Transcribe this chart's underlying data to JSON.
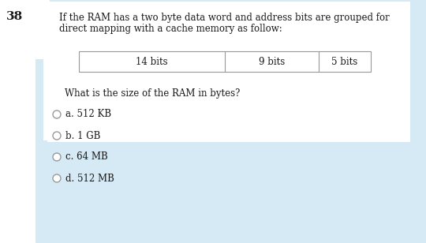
{
  "question_number": "38",
  "question_text_line1": "If the RAM has a two byte data word and address bits are grouped for",
  "question_text_line2": "direct mapping with a cache memory as follow:",
  "table_cols": [
    "14 bits",
    "9 bits",
    "5 bits"
  ],
  "sub_question": "What is the size of the RAM in bytes?",
  "options": [
    "a. 512 KB",
    "b. 1 GB",
    "c. 64 MB",
    "d. 512 MB"
  ],
  "bg_color": "#d6eaf5",
  "white_bg": "#ffffff",
  "text_color": "#1a1a1a",
  "border_color": "#999999",
  "font_size_question": 8.5,
  "font_size_options": 8.5,
  "font_size_number": 11,
  "font_size_table": 8.5,
  "fig_w": 5.4,
  "fig_h": 3.08,
  "dpi": 100
}
